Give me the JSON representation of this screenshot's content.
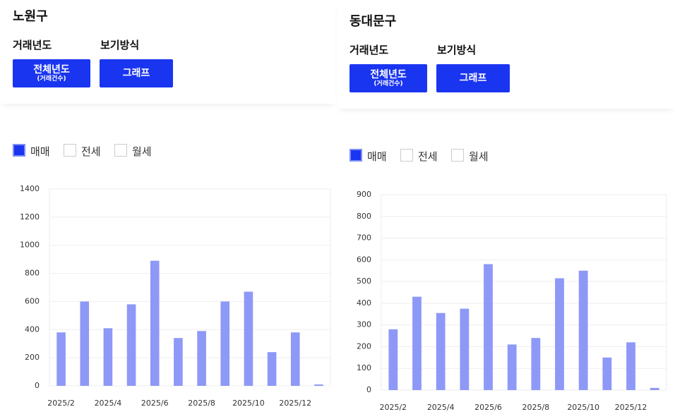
{
  "panels": [
    {
      "title": "노원구",
      "year_label": "거래년도",
      "year_button": "전체년도",
      "year_button_sub": "(거래건수)",
      "view_label": "보기방식",
      "view_button": "그래프",
      "legend": [
        {
          "label": "매매",
          "checked": true
        },
        {
          "label": "전세",
          "checked": false
        },
        {
          "label": "월세",
          "checked": false
        }
      ]
    },
    {
      "title": "동대문구",
      "year_label": "거래년도",
      "year_button": "전체년도",
      "year_button_sub": "(거래건수)",
      "view_label": "보기방식",
      "view_button": "그래프",
      "legend": [
        {
          "label": "매매",
          "checked": true
        },
        {
          "label": "전세",
          "checked": false
        },
        {
          "label": "월세",
          "checked": false
        }
      ]
    }
  ],
  "chart_data": [
    {
      "type": "bar",
      "categories": [
        "2025/2",
        null,
        "2025/4",
        null,
        "2025/6",
        null,
        "2025/8",
        null,
        "2025/10",
        null,
        "2025/12",
        null
      ],
      "values": [
        380,
        600,
        410,
        580,
        890,
        340,
        390,
        600,
        670,
        240,
        380,
        10
      ],
      "color": "#8e98f7",
      "ylim": [
        0,
        1400
      ],
      "yticks": [
        0,
        200,
        400,
        600,
        800,
        1000,
        1200,
        1400
      ],
      "grid": true
    },
    {
      "type": "bar",
      "categories": [
        "2025/2",
        null,
        "2025/4",
        null,
        "2025/6",
        null,
        "2025/8",
        null,
        "2025/10",
        null,
        "2025/12",
        null
      ],
      "values": [
        280,
        430,
        355,
        375,
        580,
        210,
        240,
        515,
        550,
        150,
        220,
        10
      ],
      "color": "#8e98f7",
      "ylim": [
        0,
        900
      ],
      "yticks": [
        0,
        100,
        200,
        300,
        400,
        500,
        600,
        700,
        800,
        900
      ],
      "grid": true
    }
  ]
}
